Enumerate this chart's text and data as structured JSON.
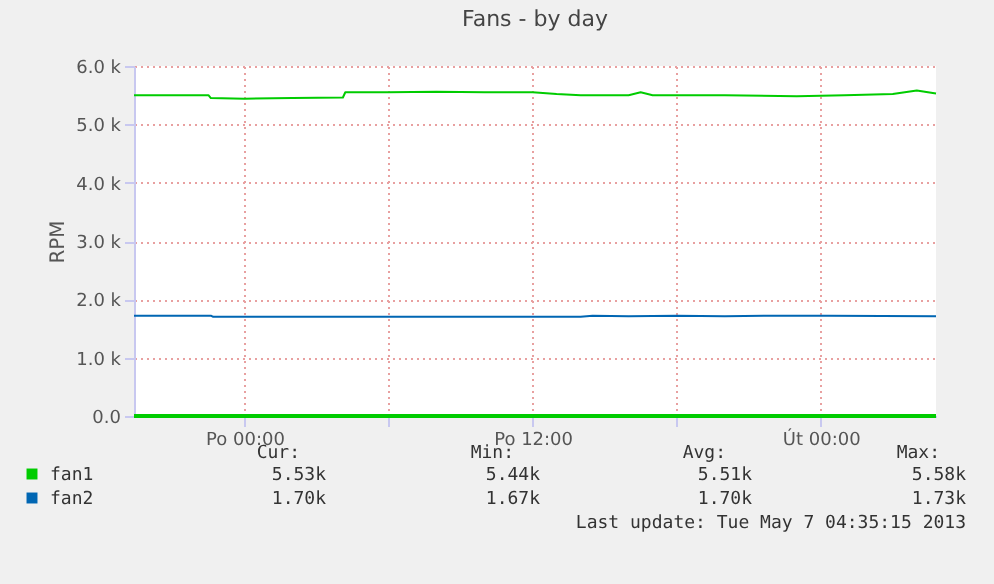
{
  "chart_data": {
    "type": "line",
    "title": "Fans - by day",
    "ylabel": "RPM",
    "xlim": [
      "2013-05-05T19:24",
      "2013-05-07T04:48"
    ],
    "xticks": [
      {
        "value": "2013-05-06T00:00",
        "label": "Po 00:00"
      },
      {
        "value": "2013-05-06T06:00",
        "label": null
      },
      {
        "value": "2013-05-06T12:00",
        "label": "Po 12:00"
      },
      {
        "value": "2013-05-06T18:00",
        "label": null
      },
      {
        "value": "2013-05-07T00:00",
        "label": "Út 00:00"
      }
    ],
    "ylim": [
      0,
      6000
    ],
    "yticks": [
      {
        "value": 0,
        "label": "0.0"
      },
      {
        "value": 1000,
        "label": "1.0 k"
      },
      {
        "value": 2000,
        "label": "2.0 k"
      },
      {
        "value": 3000,
        "label": "3.0 k"
      },
      {
        "value": 4000,
        "label": "4.0 k"
      },
      {
        "value": 5000,
        "label": "5.0 k"
      },
      {
        "value": 6000,
        "label": "6.0 k"
      }
    ],
    "grid": true,
    "legend": "bottom",
    "marker": "none",
    "line_style": "solid",
    "series": [
      {
        "name": "fan1",
        "color": "#00cc00",
        "x": [
          "2013-05-05T19:24",
          "2013-05-05T21:00",
          "2013-05-05T22:30",
          "2013-05-05T22:36",
          "2013-05-06T00:00",
          "2013-05-06T02:00",
          "2013-05-06T04:06",
          "2013-05-06T04:12",
          "2013-05-06T06:00",
          "2013-05-06T08:00",
          "2013-05-06T10:00",
          "2013-05-06T12:00",
          "2013-05-06T13:00",
          "2013-05-06T14:00",
          "2013-05-06T16:00",
          "2013-05-06T16:30",
          "2013-05-06T17:00",
          "2013-05-06T20:00",
          "2013-05-06T23:00",
          "2013-05-07T01:00",
          "2013-05-07T03:00",
          "2013-05-07T04:00",
          "2013-05-07T04:48"
        ],
        "values": [
          5500,
          5500,
          5500,
          5450,
          5440,
          5450,
          5460,
          5550,
          5550,
          5560,
          5550,
          5550,
          5520,
          5500,
          5500,
          5550,
          5500,
          5500,
          5480,
          5500,
          5520,
          5580,
          5530
        ]
      },
      {
        "name": "fan2",
        "color": "#0066b3",
        "x": [
          "2013-05-05T19:24",
          "2013-05-05T22:36",
          "2013-05-05T22:42",
          "2013-05-06T10:00",
          "2013-05-06T14:00",
          "2013-05-06T14:30",
          "2013-05-06T16:00",
          "2013-05-06T18:00",
          "2013-05-06T20:00",
          "2013-05-06T22:00",
          "2013-05-07T00:18",
          "2013-05-07T04:48"
        ],
        "values": [
          1720,
          1720,
          1700,
          1700,
          1700,
          1720,
          1710,
          1720,
          1710,
          1720,
          1720,
          1710
        ]
      }
    ],
    "ref_lines": [
      {
        "axis": "y",
        "value": 0,
        "color": "#00cc00"
      }
    ],
    "annotations": [
      "Cur:",
      "Min:",
      "Avg:",
      "Max:",
      "5.53k",
      "5.44k",
      "5.51k",
      "5.58k",
      "1.70k",
      "1.67k",
      "1.70k",
      "1.73k",
      "Last update: Tue May  7 04:35:15 2013"
    ]
  }
}
